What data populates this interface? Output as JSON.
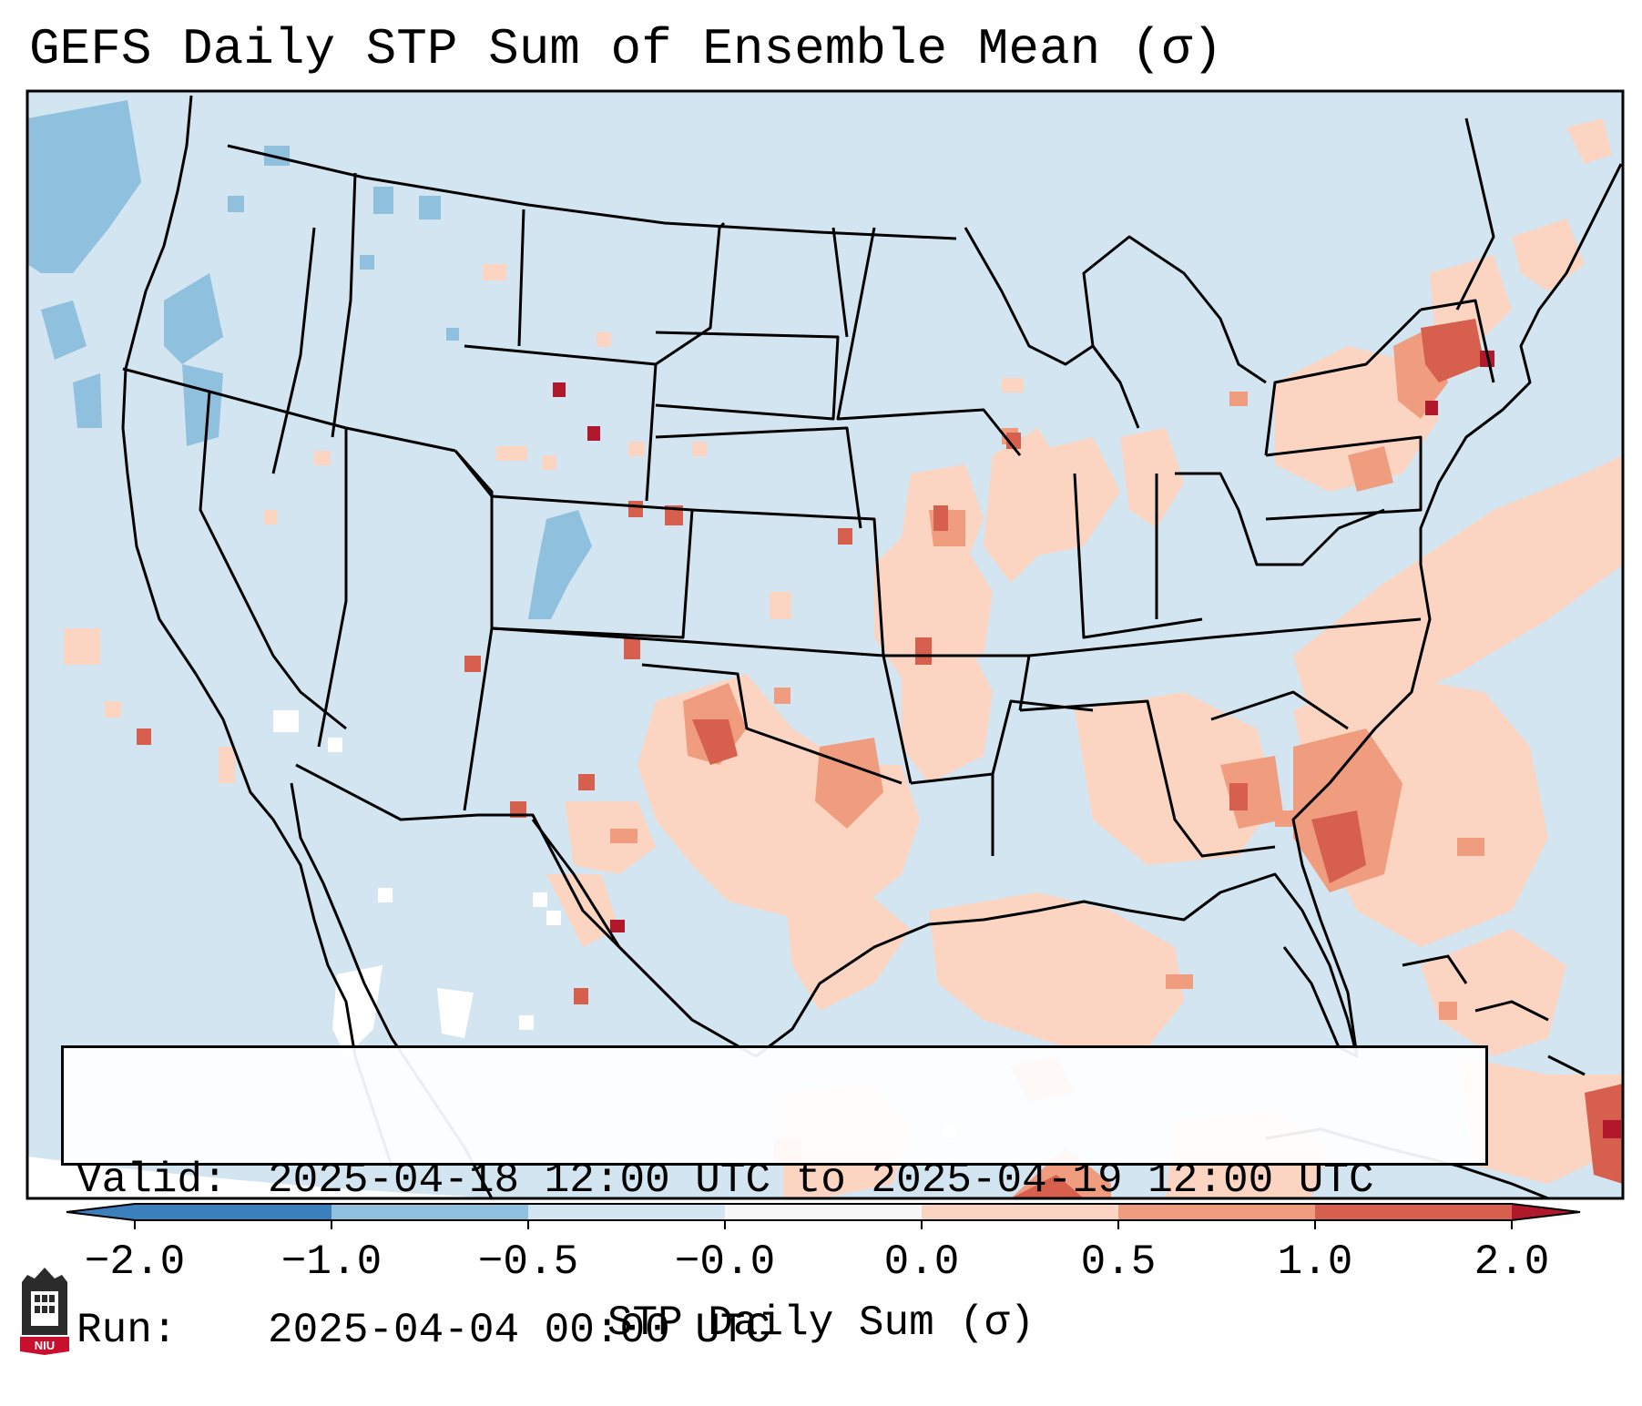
{
  "title": "GEFS Daily STP Sum of Ensemble Mean (σ)",
  "info": {
    "valid_label": "Valid:",
    "valid_value": "2025-04-18 12:00 UTC to 2025-04-19 12:00 UTC",
    "run_label": "Run:",
    "run_value": "2025-04-04 00:00 UTC"
  },
  "colorbar": {
    "label": "STP Daily Sum (σ)",
    "ticks": [
      "−2.0",
      "−1.0",
      "−0.5",
      "−0.0",
      "0.0",
      "0.5",
      "1.0",
      "2.0"
    ],
    "colors": [
      "#3b7fbd",
      "#8fc0dd",
      "#d2e5f0",
      "#f7f7f7",
      "#fbd5c2",
      "#f09c7f",
      "#d6604d",
      "#b2182b"
    ],
    "extend": "both"
  },
  "map": {
    "region": "Continental United States",
    "colors": {
      "neg_strong": "#8fc0dd",
      "neg_weak": "#d2e5f0",
      "neutral": "#ffffff",
      "pos_weak": "#fbd5c2",
      "pos_mid": "#f09c7f",
      "pos_strong": "#d6604d",
      "pos_extreme": "#b2182b",
      "border": "#000000"
    },
    "highlighted_regions": [
      {
        "area": "Southern Plains (TX/OK)",
        "level": "0.5 to 1.0"
      },
      {
        "area": "Southeast (GA/FL/SC)",
        "level": "0.5 to 1.0"
      },
      {
        "area": "Northeast (New England)",
        "level": "1.0 to 2.0"
      },
      {
        "area": "Pacific Northwest",
        "level": "-1.0 to -0.5"
      }
    ]
  },
  "logo": {
    "text": "NIU"
  }
}
